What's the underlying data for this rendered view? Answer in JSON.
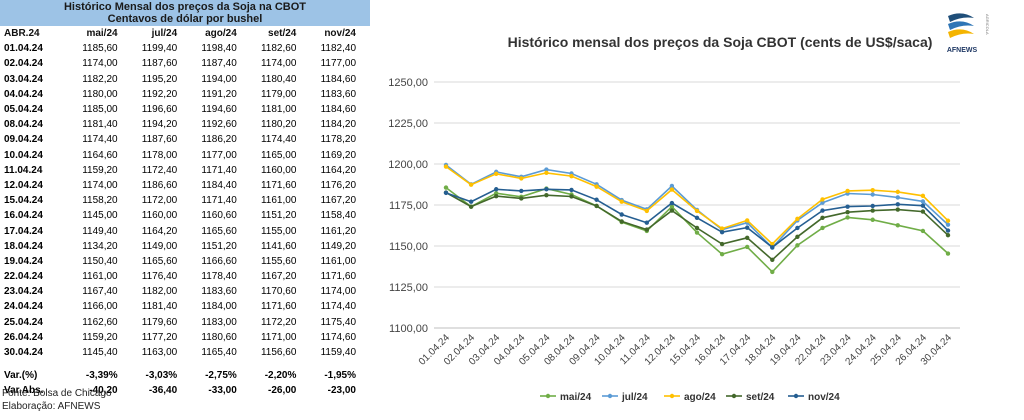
{
  "table": {
    "title": "Histórico Mensal dos preços da Soja na CBOT",
    "subtitle": "Centavos de dólar por bushel",
    "columns": [
      "ABR.24",
      "mai/24",
      "jul/24",
      "ago/24",
      "set/24",
      "nov/24"
    ],
    "rows": [
      [
        "01.04.24",
        "1185,60",
        "1199,40",
        "1198,40",
        "1182,60",
        "1182,40"
      ],
      [
        "02.04.24",
        "1174,00",
        "1187,60",
        "1187,40",
        "1174,00",
        "1177,00"
      ],
      [
        "03.04.24",
        "1182,20",
        "1195,20",
        "1194,00",
        "1180,40",
        "1184,60"
      ],
      [
        "04.04.24",
        "1180,00",
        "1192,20",
        "1191,20",
        "1179,00",
        "1183,60"
      ],
      [
        "05.04.24",
        "1185,00",
        "1196,60",
        "1194,60",
        "1181,00",
        "1184,60"
      ],
      [
        "08.04.24",
        "1181,40",
        "1194,20",
        "1192,60",
        "1180,20",
        "1184,20"
      ],
      [
        "09.04.24",
        "1174,40",
        "1187,60",
        "1186,20",
        "1174,40",
        "1178,20"
      ],
      [
        "10.04.24",
        "1164,60",
        "1178,00",
        "1177,00",
        "1165,00",
        "1169,20"
      ],
      [
        "11.04.24",
        "1159,20",
        "1172,40",
        "1171,40",
        "1160,00",
        "1164,20"
      ],
      [
        "12.04.24",
        "1174,00",
        "1186,60",
        "1184,40",
        "1171,60",
        "1176,20"
      ],
      [
        "15.04.24",
        "1158,20",
        "1172,00",
        "1171,40",
        "1161,00",
        "1167,20"
      ],
      [
        "16.04.24",
        "1145,00",
        "1160,00",
        "1160,60",
        "1151,20",
        "1158,40"
      ],
      [
        "17.04.24",
        "1149,40",
        "1164,20",
        "1165,60",
        "1155,00",
        "1161,20"
      ],
      [
        "18.04.24",
        "1134,20",
        "1149,00",
        "1151,20",
        "1141,60",
        "1149,20"
      ],
      [
        "19.04.24",
        "1150,40",
        "1165,60",
        "1166,60",
        "1155,60",
        "1161,00"
      ],
      [
        "22.04.24",
        "1161,00",
        "1176,40",
        "1178,40",
        "1167,20",
        "1171,60"
      ],
      [
        "23.04.24",
        "1167,40",
        "1182,00",
        "1183,60",
        "1170,60",
        "1174,00"
      ],
      [
        "24.04.24",
        "1166,00",
        "1181,40",
        "1184,00",
        "1171,60",
        "1174,40"
      ],
      [
        "25.04.24",
        "1162,60",
        "1179,60",
        "1183,00",
        "1172,20",
        "1175,40"
      ],
      [
        "26.04.24",
        "1159,20",
        "1177,20",
        "1180,60",
        "1171,00",
        "1174,60"
      ],
      [
        "30.04.24",
        "1145,40",
        "1163,00",
        "1165,40",
        "1156,60",
        "1159,40"
      ]
    ],
    "var_pct": [
      "Var.(%)",
      "-3,39%",
      "-3,03%",
      "-2,75%",
      "-2,20%",
      "-1,95%"
    ],
    "var_abs": [
      "Var.Abs.",
      "-40,20",
      "-36,40",
      "-33,00",
      "-26,00",
      "-23,00"
    ],
    "source": "Fonte: Bolsa de Chicago",
    "credit": "Elaboração: AFNEWS"
  },
  "logo": {
    "text": "AFNEWS",
    "vertical_text": "AGRICOLA"
  },
  "chart_data": {
    "type": "line",
    "title": "Histórico mensal dos preços da Soja CBOT (cents de US$/saca)",
    "x": [
      "01.04.24",
      "02.04.24",
      "03.04.24",
      "04.04.24",
      "05.04.24",
      "08.04.24",
      "09.04.24",
      "10.04.24",
      "11.04.24",
      "12.04.24",
      "15.04.24",
      "16.04.24",
      "17.04.24",
      "18.04.24",
      "19.04.24",
      "22.04.24",
      "23.04.24",
      "24.04.24",
      "25.04.24",
      "26.04.24",
      "30.04.24"
    ],
    "ylim": [
      1100,
      1250
    ],
    "yticks": [
      1100,
      1125,
      1150,
      1175,
      1200,
      1225,
      1250
    ],
    "ytick_labels": [
      "1100,00",
      "1125,00",
      "1150,00",
      "1175,00",
      "1200,00",
      "1225,00",
      "1250,00"
    ],
    "grid": true,
    "legend": "bottom",
    "series": [
      {
        "name": "mai/24",
        "color": "#70ad47",
        "values": [
          1185.6,
          1174.0,
          1182.2,
          1180.0,
          1185.0,
          1181.4,
          1174.4,
          1164.6,
          1159.2,
          1174.0,
          1158.2,
          1145.0,
          1149.4,
          1134.2,
          1150.4,
          1161.0,
          1167.4,
          1166.0,
          1162.6,
          1159.2,
          1145.4
        ]
      },
      {
        "name": "jul/24",
        "color": "#5b9bd5",
        "values": [
          1199.4,
          1187.6,
          1195.2,
          1192.2,
          1196.6,
          1194.2,
          1187.6,
          1178.0,
          1172.4,
          1186.6,
          1172.0,
          1160.0,
          1164.2,
          1149.0,
          1165.6,
          1176.4,
          1182.0,
          1181.4,
          1179.6,
          1177.2,
          1163.0
        ]
      },
      {
        "name": "ago/24",
        "color": "#ffc000",
        "values": [
          1198.4,
          1187.4,
          1194.0,
          1191.2,
          1194.6,
          1192.6,
          1186.2,
          1177.0,
          1171.4,
          1184.4,
          1171.4,
          1160.6,
          1165.6,
          1151.2,
          1166.6,
          1178.4,
          1183.6,
          1184.0,
          1183.0,
          1180.6,
          1165.4
        ]
      },
      {
        "name": "set/24",
        "color": "#43682b",
        "values": [
          1182.6,
          1174.0,
          1180.4,
          1179.0,
          1181.0,
          1180.2,
          1174.4,
          1165.0,
          1160.0,
          1171.6,
          1161.0,
          1151.2,
          1155.0,
          1141.6,
          1155.6,
          1167.2,
          1170.6,
          1171.6,
          1172.2,
          1171.0,
          1156.6
        ]
      },
      {
        "name": "nov/24",
        "color": "#255e91",
        "values": [
          1182.4,
          1177.0,
          1184.6,
          1183.6,
          1184.6,
          1184.2,
          1178.2,
          1169.2,
          1164.2,
          1176.2,
          1167.2,
          1158.4,
          1161.2,
          1149.2,
          1161.0,
          1171.6,
          1174.0,
          1174.4,
          1175.4,
          1174.6,
          1159.4
        ]
      }
    ]
  }
}
